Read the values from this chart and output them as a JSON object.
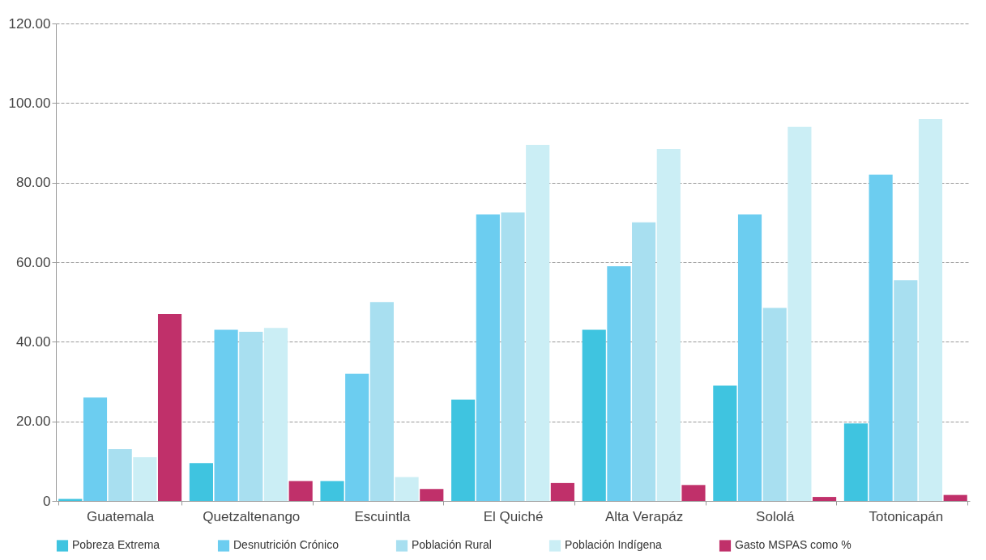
{
  "chart_data": {
    "type": "bar",
    "categories": [
      "Guatemala",
      "Quetzaltenango",
      "Escuintla",
      "El Quiché",
      "Alta Verapáz",
      "Sololá",
      "Totonicapán"
    ],
    "series": [
      {
        "name": "Pobreza Extrema",
        "color": "#3fc4e0",
        "values": [
          0.5,
          9.5,
          5,
          25.5,
          43,
          29,
          19.5
        ]
      },
      {
        "name": "Desnutrición Crónico",
        "color": "#6ccdf0",
        "values": [
          26,
          43,
          32,
          72,
          59,
          72,
          82
        ]
      },
      {
        "name": "Población Rural",
        "color": "#a8dff0",
        "values": [
          13,
          42.5,
          50,
          72.5,
          70,
          48.5,
          55.5
        ]
      },
      {
        "name": "Población Indígena",
        "color": "#cbeef5",
        "values": [
          11,
          43.5,
          6,
          89.5,
          88.5,
          94,
          96
        ]
      },
      {
        "name": "Gasto MSPAS como %",
        "color": "#c0306a",
        "values": [
          47,
          5,
          3,
          4.5,
          4,
          1,
          1.5
        ]
      }
    ],
    "ylim": [
      0,
      120
    ],
    "yticks": [
      0,
      {
        "value": 20,
        "label": "20.00"
      },
      {
        "value": 40,
        "label": "40.00"
      },
      {
        "value": 60,
        "label": "60.00"
      },
      {
        "value": 80,
        "label": "80.00"
      },
      {
        "value": 100,
        "label": "100.00"
      },
      {
        "value": 120,
        "label": "120.00"
      }
    ],
    "grid": "y",
    "legend": "bottom"
  }
}
